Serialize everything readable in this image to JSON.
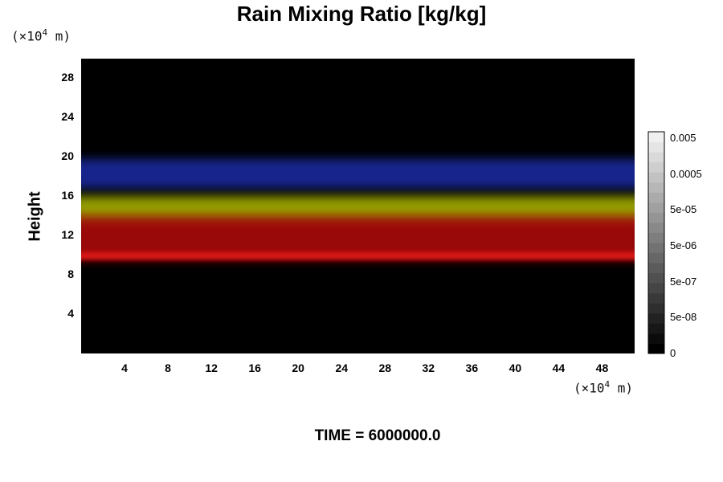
{
  "chart_data": {
    "type": "heatmap",
    "title": "Rain Mixing Ratio [kg/kg]",
    "ylabel": "Height",
    "y_unit_prefix": "(×10",
    "y_unit_exp": "4",
    "y_unit_suffix": " m)",
    "x_unit_prefix": "(×10",
    "x_unit_exp": "4",
    "x_unit_suffix": " m)",
    "xlim": [
      0,
      51
    ],
    "ylim": [
      0,
      30
    ],
    "x_ticks": [
      "4",
      "8",
      "12",
      "16",
      "20",
      "24",
      "28",
      "32",
      "36",
      "40",
      "44",
      "48"
    ],
    "y_ticks": [
      "4",
      "8",
      "12",
      "16",
      "20",
      "24",
      "28"
    ],
    "colorbar_labels": [
      "0.005",
      "0.0005",
      "5e-05",
      "5e-06",
      "5e-07",
      "5e-08",
      "0"
    ],
    "time_label": "TIME = 6000000.0",
    "layers": [
      {
        "color": "blue",
        "hex": "#1a2fb0",
        "y_bottom": 16.8,
        "y_top": 19.8
      },
      {
        "color": "yellow",
        "hex": "#b8c400",
        "y_bottom": 13.5,
        "y_top": 16.0
      },
      {
        "color": "red",
        "hex": "#cc1010",
        "y_bottom": 9.5,
        "y_top": 14.0
      }
    ]
  }
}
